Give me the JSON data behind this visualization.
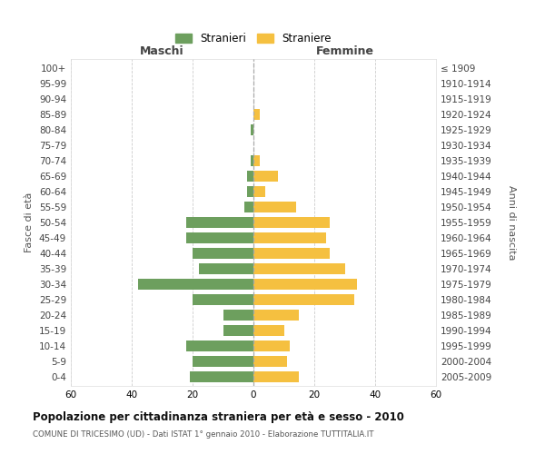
{
  "age_groups": [
    "100+",
    "95-99",
    "90-94",
    "85-89",
    "80-84",
    "75-79",
    "70-74",
    "65-69",
    "60-64",
    "55-59",
    "50-54",
    "45-49",
    "40-44",
    "35-39",
    "30-34",
    "25-29",
    "20-24",
    "15-19",
    "10-14",
    "5-9",
    "0-4"
  ],
  "birth_years": [
    "≤ 1909",
    "1910-1914",
    "1915-1919",
    "1920-1924",
    "1925-1929",
    "1930-1934",
    "1935-1939",
    "1940-1944",
    "1945-1949",
    "1950-1954",
    "1955-1959",
    "1960-1964",
    "1965-1969",
    "1970-1974",
    "1975-1979",
    "1980-1984",
    "1985-1989",
    "1990-1994",
    "1995-1999",
    "2000-2004",
    "2005-2009"
  ],
  "males": [
    0,
    0,
    0,
    0,
    1,
    0,
    1,
    2,
    2,
    3,
    22,
    22,
    20,
    18,
    38,
    20,
    10,
    10,
    22,
    20,
    21
  ],
  "females": [
    0,
    0,
    0,
    2,
    0,
    0,
    2,
    8,
    4,
    14,
    25,
    24,
    25,
    30,
    34,
    33,
    15,
    10,
    12,
    11,
    15
  ],
  "color_males": "#6d9f5e",
  "color_females": "#f5c040",
  "title": "Popolazione per cittadinanza straniera per età e sesso - 2010",
  "subtitle": "COMUNE DI TRICESIMO (UD) - Dati ISTAT 1° gennaio 2010 - Elaborazione TUTTITALIA.IT",
  "xlabel_left": "Maschi",
  "xlabel_right": "Femmine",
  "ylabel_left": "Fasce di età",
  "ylabel_right": "Anni di nascita",
  "legend_males": "Stranieri",
  "legend_females": "Straniere",
  "xlim": 60,
  "background_color": "#ffffff",
  "grid_color": "#cccccc"
}
